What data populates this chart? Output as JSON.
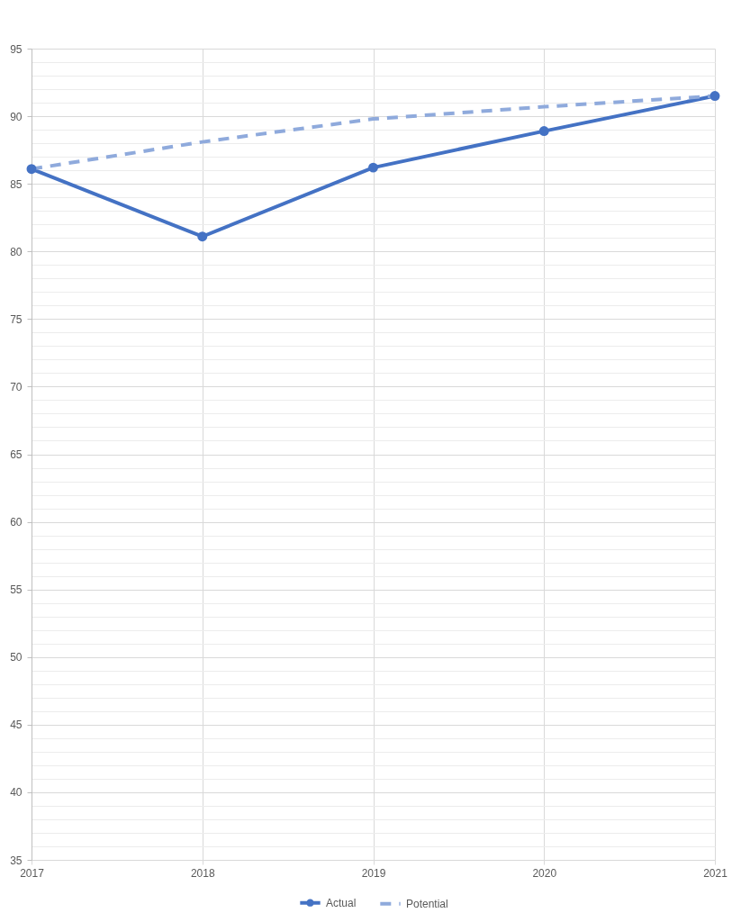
{
  "chart_data": {
    "type": "line",
    "x": [
      2017,
      2018,
      2019,
      2020,
      2021
    ],
    "xlim": [
      2017,
      2021
    ],
    "xticks": [
      2017,
      2018,
      2019,
      2020,
      2021
    ],
    "ylim": [
      35,
      95
    ],
    "yticks": [
      35,
      {
        "value": 36,
        "label": null
      },
      {
        "value": 37,
        "label": null
      },
      {
        "value": 38,
        "label": null
      },
      {
        "value": 39,
        "label": null
      },
      40,
      {
        "value": 41,
        "label": null
      },
      {
        "value": 42,
        "label": null
      },
      {
        "value": 43,
        "label": null
      },
      {
        "value": 44,
        "label": null
      },
      45,
      {
        "value": 46,
        "label": null
      },
      {
        "value": 47,
        "label": null
      },
      {
        "value": 48,
        "label": null
      },
      {
        "value": 49,
        "label": null
      },
      50,
      {
        "value": 51,
        "label": null
      },
      {
        "value": 52,
        "label": null
      },
      {
        "value": 53,
        "label": null
      },
      {
        "value": 54,
        "label": null
      },
      55,
      {
        "value": 56,
        "label": null
      },
      {
        "value": 57,
        "label": null
      },
      {
        "value": 58,
        "label": null
      },
      {
        "value": 59,
        "label": null
      },
      60,
      {
        "value": 61,
        "label": null
      },
      {
        "value": 62,
        "label": null
      },
      {
        "value": 63,
        "label": null
      },
      {
        "value": 64,
        "label": null
      },
      65,
      {
        "value": 66,
        "label": null
      },
      {
        "value": 67,
        "label": null
      },
      {
        "value": 68,
        "label": null
      },
      {
        "value": 69,
        "label": null
      },
      70,
      {
        "value": 71,
        "label": null
      },
      {
        "value": 72,
        "label": null
      },
      {
        "value": 73,
        "label": null
      },
      {
        "value": 74,
        "label": null
      },
      75,
      {
        "value": 76,
        "label": null
      },
      {
        "value": 77,
        "label": null
      },
      {
        "value": 78,
        "label": null
      },
      {
        "value": 79,
        "label": null
      },
      80,
      {
        "value": 81,
        "label": null
      },
      {
        "value": 82,
        "label": null
      },
      {
        "value": 83,
        "label": null
      },
      {
        "value": 84,
        "label": null
      },
      85,
      {
        "value": 86,
        "label": null
      },
      {
        "value": 87,
        "label": null
      },
      {
        "value": 88,
        "label": null
      },
      {
        "value": 89,
        "label": null
      },
      90,
      {
        "value": 91,
        "label": null
      },
      {
        "value": 92,
        "label": null
      },
      {
        "value": 93,
        "label": null
      },
      {
        "value": 94,
        "label": null
      },
      95
    ],
    "grid": true,
    "legend": "bottom",
    "series": [
      {
        "name": "Actual",
        "color": "#4472c4",
        "marker": "circle",
        "line_style": "solid",
        "values": [
          86.1,
          81.1,
          86.2,
          88.9,
          91.5
        ]
      },
      {
        "name": "Potential",
        "color": "#8faadc",
        "marker": "none",
        "line_style": "dashed",
        "values": [
          86.1,
          88.1,
          89.8,
          90.7,
          91.5
        ]
      }
    ]
  }
}
